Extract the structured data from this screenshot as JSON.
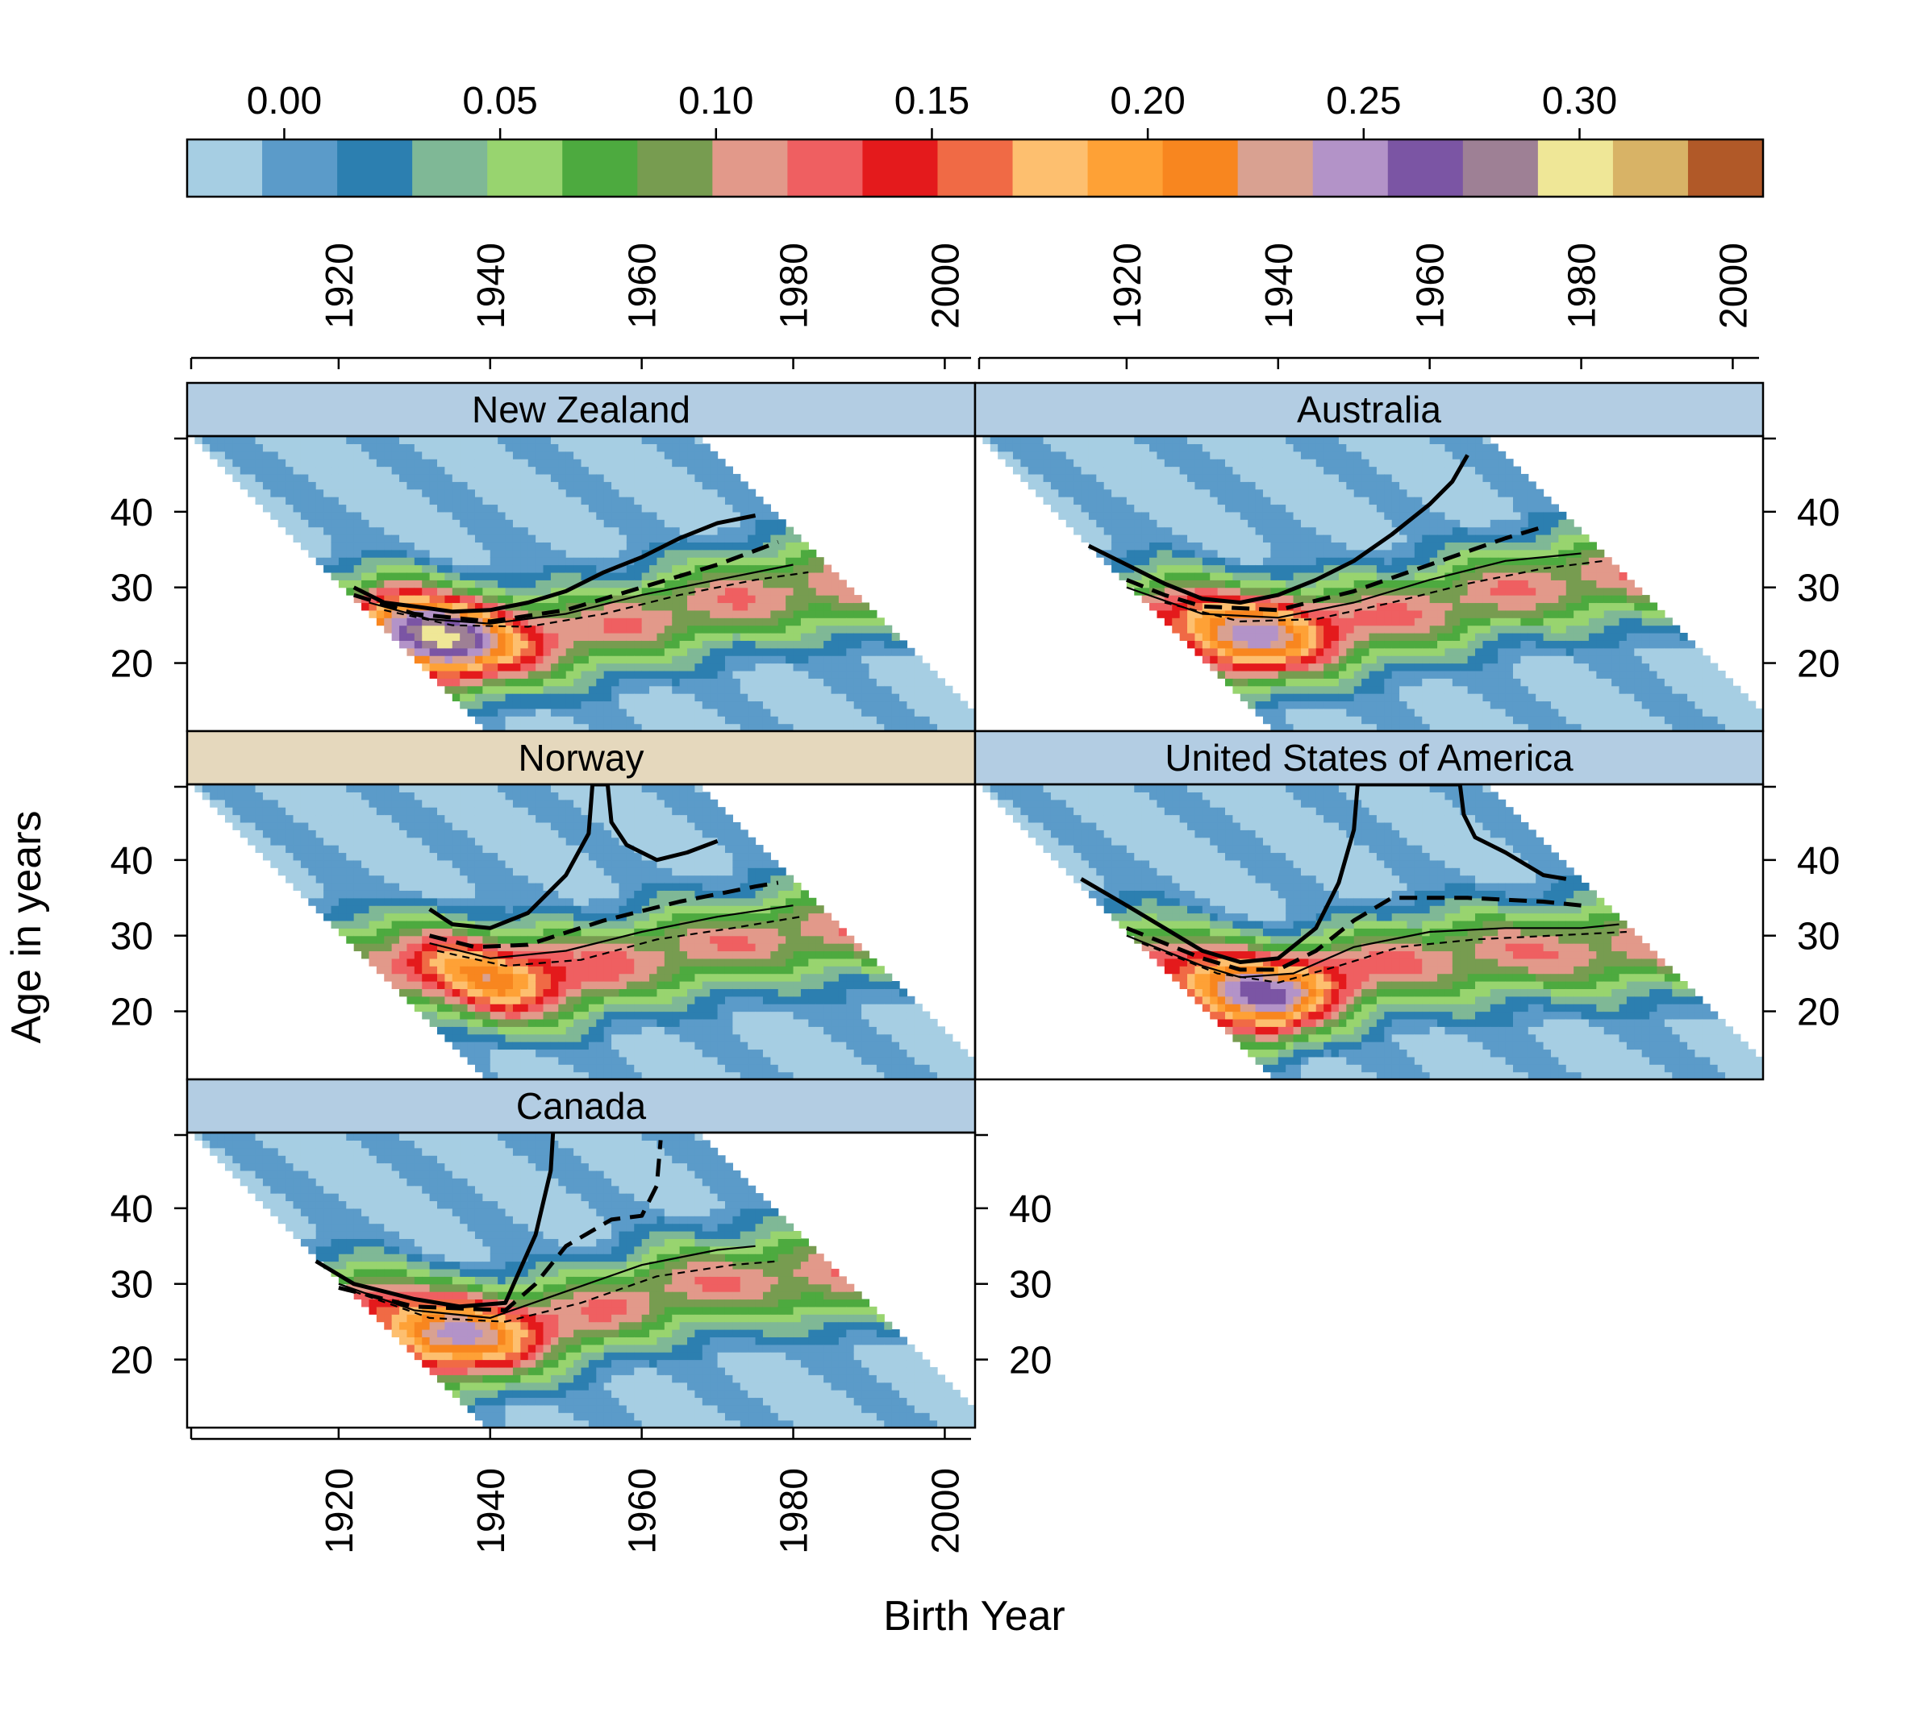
{
  "chart_data": {
    "type": "heatmap",
    "xlabel": "Birth Year",
    "ylabel": "Age in years",
    "x_ticks": [
      1920,
      1940,
      1960,
      1980,
      2000
    ],
    "y_ticks": [
      20,
      30,
      40
    ],
    "xlim": [
      1900,
      2004
    ],
    "ylim": [
      11,
      50
    ],
    "observed_period": [
      1950,
      2016
    ],
    "colorbar": {
      "ticks": [
        0.0,
        0.05,
        0.1,
        0.15,
        0.2,
        0.25,
        0.3
      ],
      "range": [
        -0.0225,
        0.3425
      ],
      "colors": [
        "#a6cee3",
        "#5b9bc9",
        "#2c7fb0",
        "#7fb896",
        "#98d46f",
        "#4daa3f",
        "#779c50",
        "#e2998a",
        "#ef5f61",
        "#e41a1c",
        "#f06a45",
        "#fdbf6f",
        "#fea136",
        "#f8861f",
        "#d9a191",
        "#b393c8",
        "#7b55a4",
        "#9e8095",
        "#efe797",
        "#d8b366",
        "#b15928"
      ]
    },
    "panels": [
      {
        "name": "New Zealand",
        "strip_color": "#b3cde3",
        "peak": {
          "year": 1933,
          "age": 23,
          "value": 0.31
        },
        "curve_solid": [
          [
            1922,
            30
          ],
          [
            1926,
            28
          ],
          [
            1930,
            27.5
          ],
          [
            1935,
            26.8
          ],
          [
            1940,
            27
          ],
          [
            1945,
            28
          ],
          [
            1950,
            29.5
          ],
          [
            1955,
            32
          ],
          [
            1960,
            34
          ],
          [
            1965,
            36.5
          ],
          [
            1970,
            38.5
          ],
          [
            1975,
            39.5
          ]
        ],
        "curve_dashed": [
          [
            1922,
            29
          ],
          [
            1930,
            26.5
          ],
          [
            1940,
            25.5
          ],
          [
            1950,
            27
          ],
          [
            1960,
            30
          ],
          [
            1970,
            33
          ],
          [
            1978,
            36
          ]
        ],
        "curve_thin": [
          [
            1924,
            28
          ],
          [
            1932,
            25.8
          ],
          [
            1940,
            25.2
          ],
          [
            1950,
            26.5
          ],
          [
            1960,
            29
          ],
          [
            1970,
            31
          ],
          [
            1980,
            33
          ]
        ],
        "curve_thin_dashed": [
          [
            1926,
            27
          ],
          [
            1935,
            25
          ],
          [
            1945,
            24.8
          ],
          [
            1955,
            26.5
          ],
          [
            1965,
            29
          ],
          [
            1975,
            31
          ],
          [
            1982,
            32
          ]
        ]
      },
      {
        "name": "Australia",
        "strip_color": "#b3cde3",
        "peak": {
          "year": 1936,
          "age": 24,
          "value": 0.25
        },
        "curve_solid": [
          [
            1915,
            35.5
          ],
          [
            1920,
            33
          ],
          [
            1925,
            30.5
          ],
          [
            1930,
            28.5
          ],
          [
            1935,
            28
          ],
          [
            1940,
            29
          ],
          [
            1945,
            31
          ],
          [
            1950,
            33.5
          ],
          [
            1955,
            37
          ],
          [
            1960,
            41
          ],
          [
            1963,
            44
          ],
          [
            1965,
            47.5
          ]
        ],
        "curve_dashed": [
          [
            1920,
            31
          ],
          [
            1925,
            29
          ],
          [
            1930,
            27.5
          ],
          [
            1940,
            27
          ],
          [
            1950,
            29.5
          ],
          [
            1960,
            33
          ],
          [
            1970,
            36.5
          ],
          [
            1975,
            38
          ]
        ],
        "curve_thin": [
          [
            1920,
            30
          ],
          [
            1930,
            26.5
          ],
          [
            1940,
            26
          ],
          [
            1950,
            28
          ],
          [
            1960,
            31
          ],
          [
            1970,
            33.5
          ],
          [
            1980,
            34.5
          ]
        ],
        "curve_thin_dashed": [
          [
            1925,
            28
          ],
          [
            1935,
            25.5
          ],
          [
            1945,
            25.8
          ],
          [
            1955,
            28
          ],
          [
            1965,
            30.5
          ],
          [
            1975,
            32.5
          ],
          [
            1983,
            33.5
          ]
        ]
      },
      {
        "name": "Norway",
        "strip_color": "#e5d8bd",
        "peak": {
          "year": 1940,
          "age": 24,
          "value": 0.21
        },
        "curve_solid": [
          [
            1932,
            33.5
          ],
          [
            1935,
            31.5
          ],
          [
            1940,
            31
          ],
          [
            1945,
            33
          ],
          [
            1950,
            38
          ],
          [
            1953,
            43.5
          ],
          [
            1953.5,
            50
          ],
          [
            1955.5,
            50
          ],
          [
            1956,
            45
          ],
          [
            1958,
            42
          ],
          [
            1962,
            40
          ],
          [
            1966,
            41
          ],
          [
            1970,
            42.5
          ]
        ],
        "curve_dashed": [
          [
            1932,
            30
          ],
          [
            1938,
            28.5
          ],
          [
            1945,
            28.8
          ],
          [
            1955,
            32
          ],
          [
            1965,
            34.5
          ],
          [
            1975,
            36.5
          ],
          [
            1978,
            37
          ]
        ],
        "curve_thin": [
          [
            1932,
            29
          ],
          [
            1940,
            27
          ],
          [
            1950,
            28
          ],
          [
            1960,
            30.5
          ],
          [
            1970,
            32.5
          ],
          [
            1980,
            34
          ]
        ],
        "curve_thin_dashed": [
          [
            1933,
            28
          ],
          [
            1942,
            26
          ],
          [
            1952,
            26.8
          ],
          [
            1962,
            29.5
          ],
          [
            1972,
            31
          ],
          [
            1981,
            32.5
          ]
        ]
      },
      {
        "name": "United States of America",
        "strip_color": "#b3cde3",
        "peak": {
          "year": 1937,
          "age": 22,
          "value": 0.27
        },
        "curve_solid": [
          [
            1914,
            37.5
          ],
          [
            1920,
            34
          ],
          [
            1925,
            31
          ],
          [
            1930,
            28
          ],
          [
            1935,
            26.5
          ],
          [
            1940,
            27
          ],
          [
            1945,
            31
          ],
          [
            1948,
            37
          ],
          [
            1950,
            44
          ],
          [
            1950.5,
            50
          ],
          [
            1964,
            50
          ],
          [
            1964.5,
            46
          ],
          [
            1966,
            43
          ],
          [
            1970,
            41
          ],
          [
            1975,
            38
          ],
          [
            1978,
            37.5
          ]
        ],
        "curve_dashed": [
          [
            1920,
            31
          ],
          [
            1930,
            27
          ],
          [
            1935,
            25.5
          ],
          [
            1940,
            25.5
          ],
          [
            1945,
            28
          ],
          [
            1950,
            32
          ],
          [
            1955,
            35
          ],
          [
            1965,
            35
          ],
          [
            1975,
            34.5
          ],
          [
            1980,
            34
          ]
        ],
        "curve_thin": [
          [
            1920,
            30
          ],
          [
            1930,
            26
          ],
          [
            1935,
            24.5
          ],
          [
            1942,
            25
          ],
          [
            1950,
            28.5
          ],
          [
            1960,
            30.5
          ],
          [
            1970,
            31
          ],
          [
            1980,
            31
          ],
          [
            1985,
            31.5
          ]
        ],
        "curve_thin_dashed": [
          [
            1922,
            29
          ],
          [
            1932,
            25
          ],
          [
            1940,
            23.8
          ],
          [
            1948,
            26
          ],
          [
            1956,
            28.5
          ],
          [
            1966,
            29.5
          ],
          [
            1976,
            30
          ],
          [
            1986,
            30.5
          ]
        ]
      },
      {
        "name": "Canada",
        "strip_color": "#b3cde3",
        "peak": {
          "year": 1935,
          "age": 23,
          "value": 0.25
        },
        "curve_solid": [
          [
            1917,
            33
          ],
          [
            1922,
            30
          ],
          [
            1930,
            28
          ],
          [
            1936,
            27
          ],
          [
            1942,
            27.5
          ],
          [
            1944,
            32
          ],
          [
            1946,
            36.5
          ],
          [
            1948,
            45
          ],
          [
            1948.3,
            50
          ]
        ],
        "curve_dashed": [
          [
            1920,
            29.5
          ],
          [
            1930,
            27
          ],
          [
            1942,
            26.5
          ],
          [
            1946,
            30
          ],
          [
            1950,
            35
          ],
          [
            1956,
            38.5
          ],
          [
            1960,
            39
          ],
          [
            1962,
            43
          ],
          [
            1962.5,
            49
          ]
        ],
        "curve_thin": [
          [
            1920,
            30
          ],
          [
            1930,
            26.5
          ],
          [
            1940,
            25.5
          ],
          [
            1950,
            29
          ],
          [
            1960,
            32.5
          ],
          [
            1970,
            34.5
          ],
          [
            1975,
            35
          ]
        ],
        "curve_thin_dashed": [
          [
            1922,
            29
          ],
          [
            1932,
            25.5
          ],
          [
            1942,
            25
          ],
          [
            1952,
            27.5
          ],
          [
            1962,
            31
          ],
          [
            1972,
            32.5
          ],
          [
            1978,
            33
          ]
        ]
      }
    ]
  }
}
